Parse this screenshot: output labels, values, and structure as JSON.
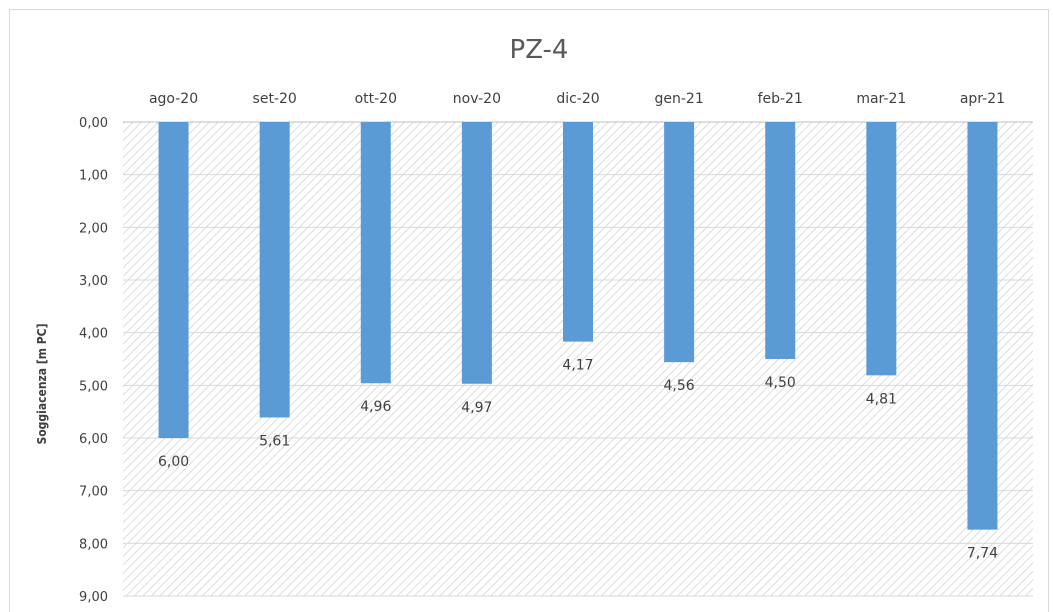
{
  "chart_data": {
    "type": "bar",
    "orientation": "vertical-reversed",
    "title": "PZ-4",
    "ylabel": "Soggiacenza [m PC]",
    "xlabel": "",
    "categories": [
      "ago-20",
      "set-20",
      "ott-20",
      "nov-20",
      "dic-20",
      "gen-21",
      "feb-21",
      "mar-21",
      "apr-21"
    ],
    "values": [
      6.0,
      5.61,
      4.96,
      4.97,
      4.17,
      4.56,
      4.5,
      4.81,
      7.74
    ],
    "value_labels": [
      "6,00",
      "5,61",
      "4,96",
      "4,97",
      "4,17",
      "4,56",
      "4,50",
      "4,81",
      "7,74"
    ],
    "ylim": [
      0,
      9
    ],
    "y_inverted": true,
    "y_ticks": [
      "0,00",
      "1,00",
      "2,00",
      "3,00",
      "4,00",
      "5,00",
      "6,00",
      "7,00",
      "8,00",
      "9,00"
    ],
    "x_axis_position": "top",
    "grid": true,
    "plot_background": "hatched",
    "bar_color": "#5b9bd5",
    "legend": "none"
  }
}
